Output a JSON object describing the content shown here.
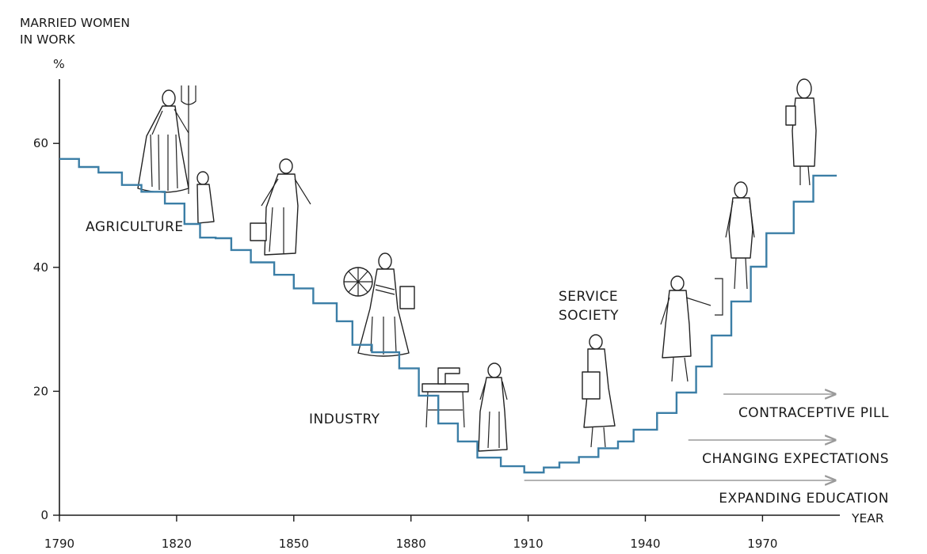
{
  "chart_data": {
    "type": "line",
    "step": true,
    "title": "",
    "ylabel_lines": [
      "MARRIED WOMEN",
      "IN WORK"
    ],
    "yunit": "%",
    "xlabel": "YEAR",
    "xlim": [
      1790,
      1990
    ],
    "ylim": [
      0,
      68
    ],
    "xticks": [
      1790,
      1820,
      1850,
      1880,
      1910,
      1940,
      1970
    ],
    "yticks": [
      0,
      20,
      40,
      60
    ],
    "line_color": "#3b7ea6",
    "series": [
      {
        "x": [
          1790,
          1795,
          1800,
          1806,
          1811,
          1817,
          1822,
          1826,
          1830,
          1834,
          1839,
          1845,
          1850,
          1855,
          1861,
          1865,
          1870,
          1877,
          1882,
          1887,
          1892,
          1897,
          1903,
          1909,
          1914,
          1918,
          1923,
          1928,
          1933,
          1937,
          1943,
          1948,
          1953,
          1957,
          1962,
          1967,
          1971,
          1978,
          1983,
          1989
        ],
        "y": [
          57.5,
          56.2,
          55.3,
          53.3,
          52.2,
          50.3,
          47,
          44.8,
          44.7,
          42.8,
          40.8,
          38.8,
          36.6,
          34.2,
          31.3,
          27.5,
          26.3,
          23.7,
          19.3,
          14.8,
          11.9,
          9.3,
          7.9,
          6.9,
          7.7,
          8.5,
          9.4,
          10.8,
          11.9,
          13.8,
          16.5,
          19.8,
          24,
          29,
          34.5,
          40.1,
          45.5,
          50.6,
          54.8,
          54.8
        ]
      }
    ],
    "annotations": [
      {
        "text": "AGRICULTURE"
      },
      {
        "text": "INDUSTRY"
      },
      {
        "text": "SERVICE"
      },
      {
        "text": "SOCIETY"
      }
    ],
    "arrows": [
      {
        "label": "CONTRACEPTIVE PILL",
        "x_start": 1960,
        "x_end": 1989,
        "color": "#9a9a9a"
      },
      {
        "label": "CHANGING EXPECTATIONS",
        "x_start": 1951,
        "x_end": 1989,
        "color": "#9a9a9a"
      },
      {
        "label": "EXPANDING EDUCATION",
        "x_start": 1909,
        "x_end": 1989,
        "color": "#9a9a9a"
      }
    ]
  }
}
